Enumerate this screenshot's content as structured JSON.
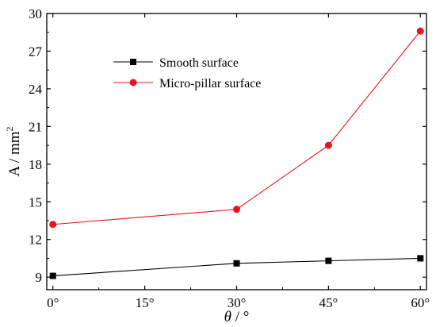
{
  "chart_data": {
    "type": "line",
    "x": [
      0,
      30,
      45,
      60
    ],
    "x_tick_labels": [
      "0°",
      "15°",
      "30°",
      "45°",
      "60°"
    ],
    "x_ticks": [
      0,
      15,
      30,
      45,
      60
    ],
    "xlim": [
      -1,
      61
    ],
    "xlabel_symbol": "θ",
    "xlabel_rest": " / °",
    "ylabel_main": "A / mm",
    "ylabel_sup": "2",
    "ylim": [
      8,
      30
    ],
    "y_ticks": [
      9,
      12,
      15,
      18,
      21,
      24,
      27,
      30
    ],
    "series": [
      {
        "name": "Smooth surface",
        "color": "#000000",
        "marker": "square",
        "values": [
          9.1,
          10.1,
          10.3,
          10.5
        ]
      },
      {
        "name": "Micro-pillar surface",
        "color": "#e8141b",
        "marker": "circle",
        "values": [
          13.2,
          14.4,
          19.5,
          28.6
        ]
      }
    ],
    "legend_position": "upper-left",
    "grid": false
  }
}
